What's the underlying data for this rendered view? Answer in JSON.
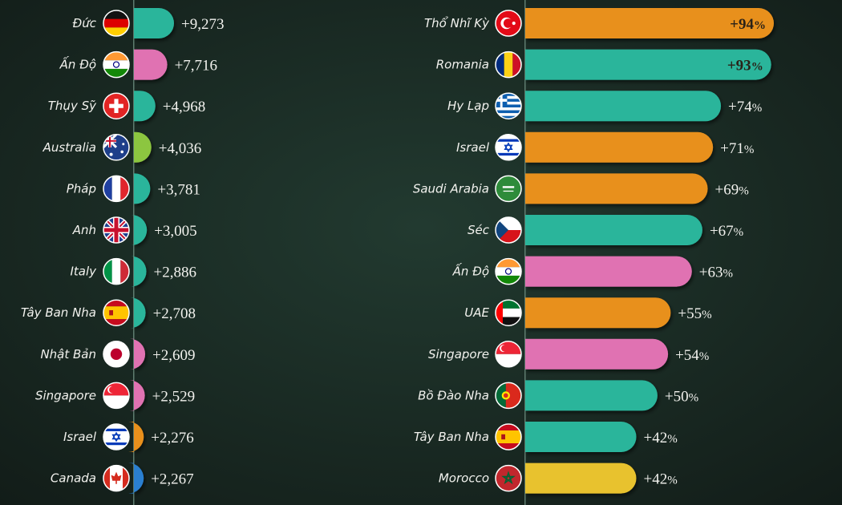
{
  "chart_data": [
    {
      "type": "bar",
      "orientation": "horizontal",
      "categories": [
        "Đức",
        "Ấn Độ",
        "Thụy Sỹ",
        "Australia",
        "Pháp",
        "Anh",
        "Italy",
        "Tây Ban Nha",
        "Nhật Bản",
        "Singapore",
        "Israel",
        "Canada"
      ],
      "values": [
        9273,
        7716,
        4968,
        4036,
        3781,
        3005,
        2886,
        2708,
        2609,
        2529,
        2276,
        2267
      ],
      "value_labels": [
        "+9,273",
        "+7,716",
        "+4,968",
        "+4,036",
        "+3,781",
        "+3,005",
        "+2,886",
        "+2,708",
        "+2,609",
        "+2,529",
        "+2,276",
        "+2,267"
      ],
      "flags": [
        "germany-flag",
        "india-flag",
        "switzerland-flag",
        "australia-flag",
        "france-flag",
        "uk-flag",
        "italy-flag",
        "spain-flag",
        "japan-flag",
        "singapore-flag",
        "israel-flag",
        "canada-flag"
      ],
      "colors": [
        "#2bb59b",
        "#e072b2",
        "#2bb59b",
        "#8cc63f",
        "#2bb59b",
        "#2bb59b",
        "#2bb59b",
        "#2bb59b",
        "#e072b2",
        "#e072b2",
        "#e8901f",
        "#2a7fd0"
      ]
    },
    {
      "type": "bar",
      "orientation": "horizontal",
      "categories": [
        "Thổ Nhĩ Kỳ",
        "Romania",
        "Hy Lạp",
        "Israel",
        "Saudi Arabia",
        "Séc",
        "Ấn Độ",
        "UAE",
        "Singapore",
        "Bồ Đào Nha",
        "Tây Ban Nha",
        "Morocco"
      ],
      "values": [
        94,
        93,
        74,
        71,
        69,
        67,
        63,
        55,
        54,
        50,
        42,
        42
      ],
      "value_labels": [
        "+94",
        "+93",
        "+74",
        "+71",
        "+69",
        "+67",
        "+63",
        "+55",
        "+54",
        "+50",
        "+42",
        "+42"
      ],
      "unit": "%",
      "flags": [
        "turkey-flag",
        "romania-flag",
        "greece-flag",
        "israel-flag",
        "saudi-arabia-flag",
        "czech-flag",
        "india-flag",
        "uae-flag",
        "singapore-flag",
        "portugal-flag",
        "spain-flag",
        "morocco-flag"
      ],
      "colors": [
        "#e8901f",
        "#2bb59b",
        "#2bb59b",
        "#e8901f",
        "#e8901f",
        "#2bb59b",
        "#e072b2",
        "#e8901f",
        "#e072b2",
        "#2bb59b",
        "#2bb59b",
        "#e8c22e"
      ]
    }
  ]
}
